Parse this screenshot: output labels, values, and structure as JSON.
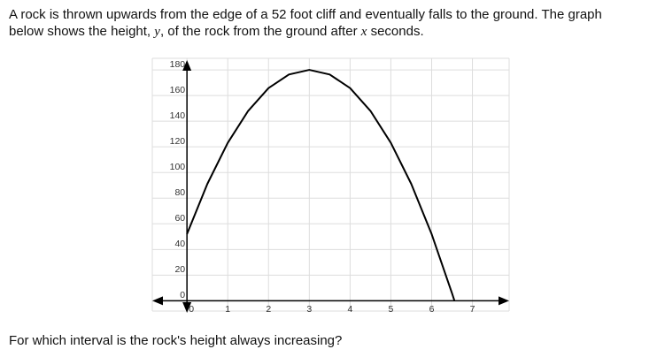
{
  "intro_line1": "A rock is thrown upwards from the edge of a 52 foot cliff and eventually falls to the ground. The graph",
  "intro_line2": [
    "below shows the height, ",
    "y",
    ", of the rock from the ground after ",
    "x",
    " seconds."
  ],
  "question": "For which interval is the rock's height always increasing?",
  "chart_data": {
    "type": "line",
    "x": [
      0,
      0.5,
      1,
      1.5,
      2,
      2.5,
      3,
      3.5,
      4,
      4.5,
      5,
      5.5,
      6,
      6.5,
      6.56
    ],
    "series": [
      {
        "color": "#000000",
        "values": [
          52,
          91.1,
          123.1,
          148,
          165.8,
          176.4,
          180,
          176.4,
          165.8,
          148,
          123.1,
          91.1,
          52,
          5.8,
          0
        ]
      }
    ],
    "xlim": [
      -0.85,
      7.9
    ],
    "ylim": [
      -8,
      189
    ],
    "xticks": [
      0,
      1,
      2,
      3,
      4,
      5,
      6,
      7
    ],
    "yticks": [
      0,
      20,
      40,
      60,
      80,
      100,
      120,
      140,
      160,
      180
    ],
    "grid": true
  }
}
